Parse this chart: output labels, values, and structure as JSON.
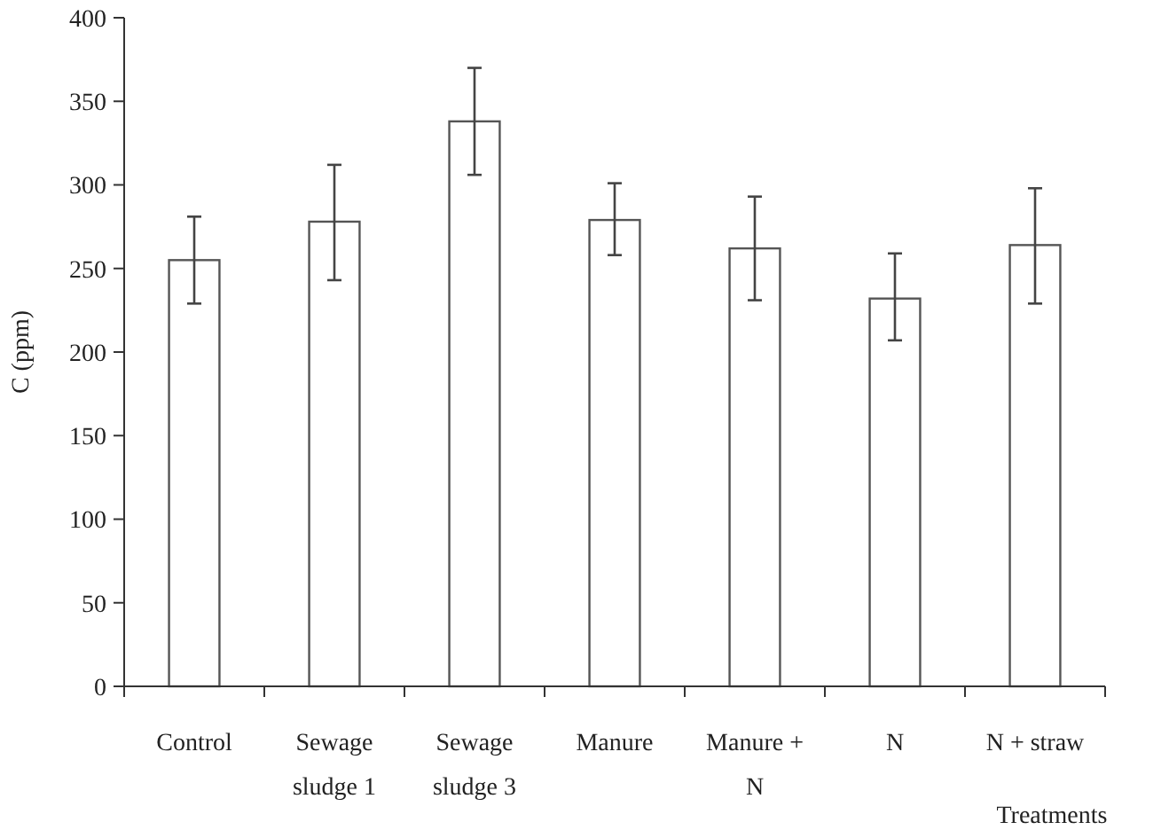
{
  "chart_data": {
    "type": "bar",
    "xlabel": "Treatments",
    "ylabel": "C (ppm)",
    "categories": [
      "Control",
      "Sewage sludge 1",
      "Sewage sludge 3",
      "Manure",
      "Manure + N",
      "N",
      "N + straw"
    ],
    "values": [
      255,
      278,
      338,
      279,
      262,
      232,
      264
    ],
    "errors": [
      [
        229,
        281
      ],
      [
        243,
        312
      ],
      [
        306,
        370
      ],
      [
        258,
        301
      ],
      [
        231,
        293
      ],
      [
        207,
        259
      ],
      [
        229,
        298
      ]
    ],
    "color": "#ffffff",
    "ylim": [
      0,
      400
    ],
    "yticks": [
      0,
      50,
      100,
      150,
      200,
      250,
      300,
      350,
      400
    ],
    "grid": false
  }
}
